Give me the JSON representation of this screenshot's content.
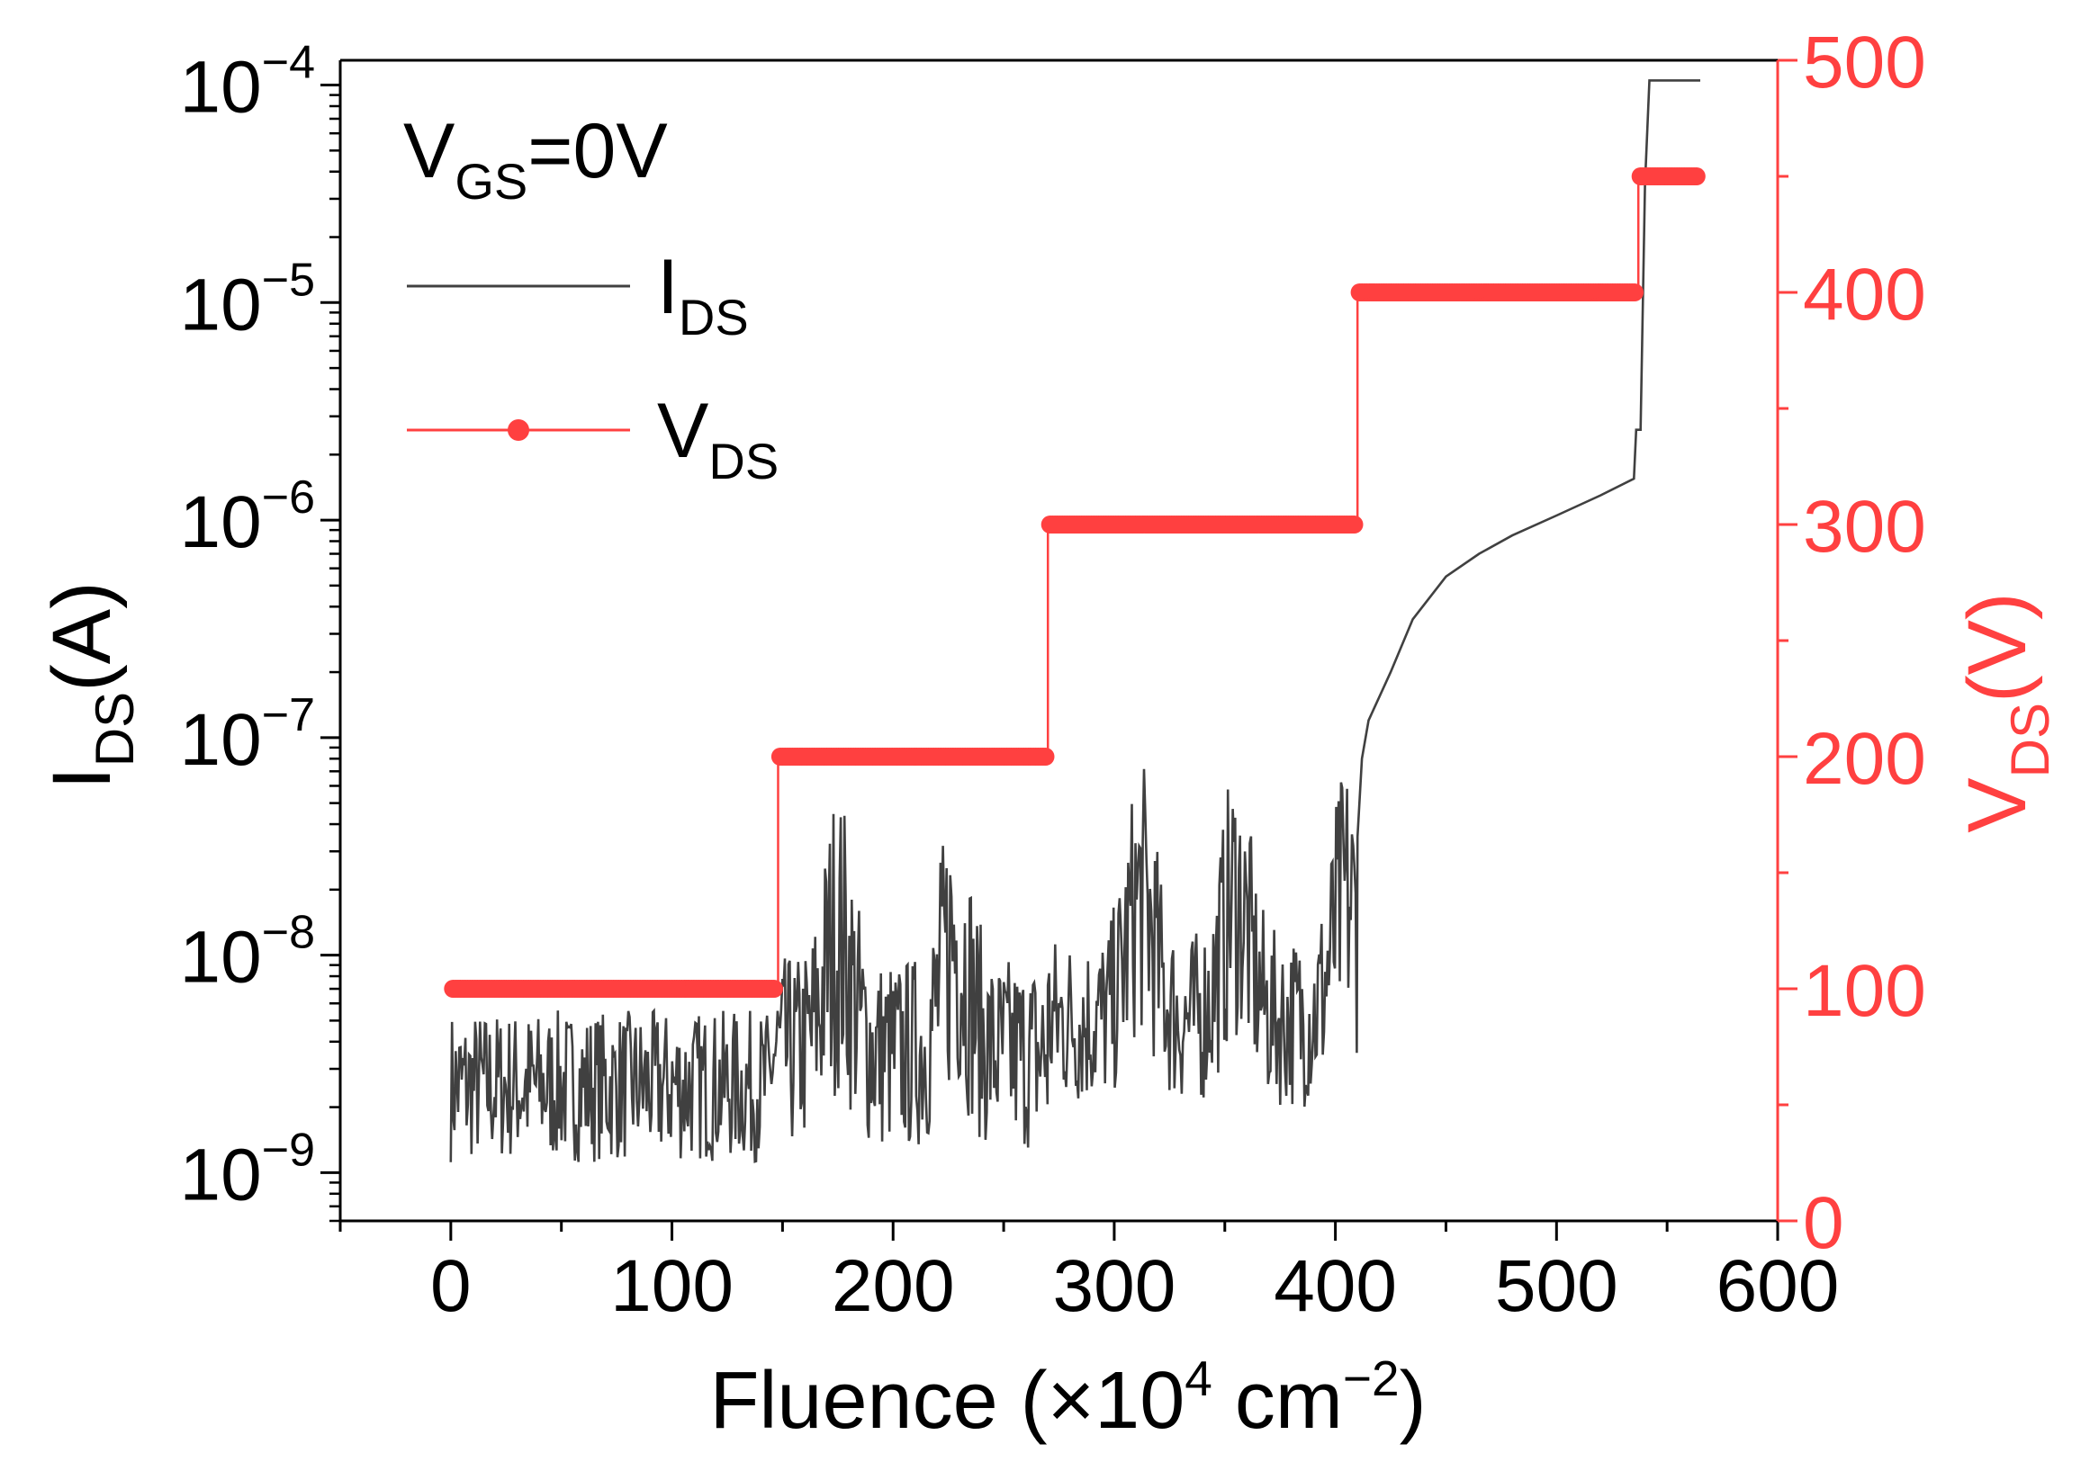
{
  "chart_data": {
    "type": "line",
    "x_axis": {
      "label": "Fluence (×10",
      "label_sup": "4",
      "label_unit": " cm",
      "label_unit_sup": "−2",
      "label_close": ")",
      "range": [
        -50,
        600
      ],
      "ticks": [
        0,
        100,
        200,
        300,
        400,
        500,
        600
      ],
      "tick_labels": [
        "0",
        "100",
        "200",
        "300",
        "400",
        "500",
        "600"
      ]
    },
    "y_axis_left": {
      "label_main": "I",
      "label_sub": "DS",
      "label_unit": "(A)",
      "scale": "log",
      "range": [
        6e-10,
        0.00013
      ],
      "ticks": [
        1e-09,
        1e-08,
        1e-07,
        1e-06,
        1e-05,
        0.0001
      ],
      "tick_base": "10",
      "tick_exponents": [
        "−9",
        "−8",
        "−7",
        "−6",
        "−5",
        "−4"
      ],
      "color": "#000000"
    },
    "y_axis_right": {
      "label_main": "V",
      "label_sub": "DS",
      "label_unit": "(V)",
      "scale": "linear",
      "range": [
        0,
        500
      ],
      "ticks": [
        0,
        100,
        200,
        300,
        400,
        500
      ],
      "tick_labels": [
        "0",
        "100",
        "200",
        "300",
        "400",
        "500"
      ],
      "color": "#ff4040"
    },
    "annotation": {
      "main": "V",
      "sub": "GS",
      "rest": "=0V"
    },
    "legend": {
      "placement": "top-left",
      "entries": [
        {
          "main": "I",
          "sub": "DS",
          "color": "#404040"
        },
        {
          "main": "V",
          "sub": "DS",
          "color": "#ff4040"
        }
      ]
    },
    "series": [
      {
        "name": "IDS",
        "axis": "left",
        "color": "#404040",
        "noise_segments": [
          {
            "x": [
              0,
              145
            ],
            "base_y": 2.5e-09,
            "amplitude_decades": 0.35
          },
          {
            "x": [
              145,
              270
            ],
            "base_y": 3.5e-09,
            "amplitude_decades": 0.45,
            "peaks_x": [
              175,
              228
            ],
            "peak_y": 1.8e-08
          },
          {
            "x": [
              270,
              410
            ],
            "base_y": 5e-09,
            "amplitude_decades": 0.4,
            "peaks_x": [
              312,
              355,
              405
            ],
            "peak_y": 2.8e-08
          }
        ],
        "points": [
          [
            410,
            3.5e-08
          ],
          [
            412,
            8e-08
          ],
          [
            415,
            1.2e-07
          ],
          [
            425,
            2e-07
          ],
          [
            435,
            3.5e-07
          ],
          [
            450,
            5.5e-07
          ],
          [
            465,
            7e-07
          ],
          [
            480,
            8.5e-07
          ],
          [
            500,
            1.05e-06
          ],
          [
            520,
            1.3e-06
          ],
          [
            535,
            1.55e-06
          ],
          [
            536,
            2.6e-06
          ],
          [
            538,
            2.6e-06
          ],
          [
            540,
            3.5e-05
          ],
          [
            542,
            0.000105
          ],
          [
            565,
            0.000105
          ]
        ]
      },
      {
        "name": "VDS",
        "axis": "right",
        "color": "#ff4040",
        "steps": [
          {
            "x": [
              0,
              148
            ],
            "y": 100
          },
          {
            "x": [
              148,
              270
            ],
            "y": 200
          },
          {
            "x": [
              270,
              410
            ],
            "y": 300
          },
          {
            "x": [
              410,
              537
            ],
            "y": 400
          },
          {
            "x": [
              537,
              565
            ],
            "y": 450
          }
        ]
      }
    ]
  }
}
